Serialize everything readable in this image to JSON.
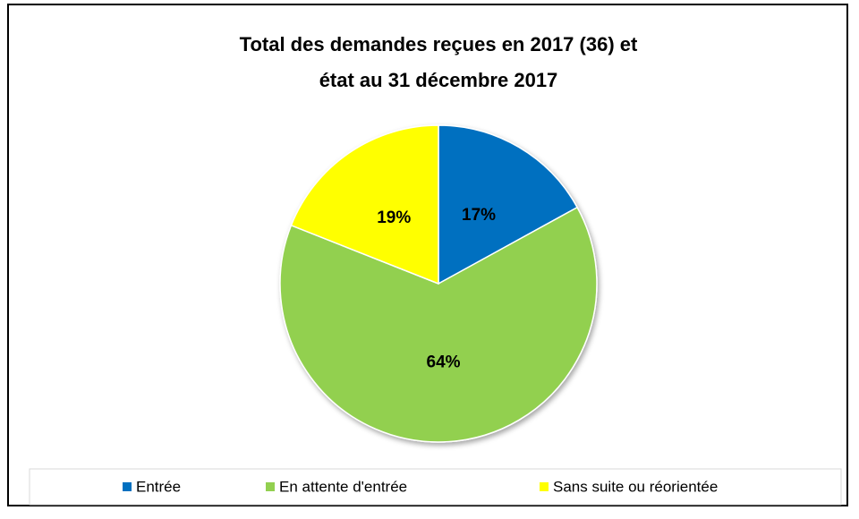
{
  "chart_data": {
    "type": "pie",
    "title": "Total des demandes reçues en 2017 (36) et état au 31 décembre 2017",
    "categories": [
      "Entrée",
      "En attente d'entrée",
      "Sans suite ou réorientée"
    ],
    "values": [
      17,
      64,
      19
    ],
    "value_labels": [
      "17%",
      "64%",
      "19%"
    ],
    "colors": [
      "#0070c0",
      "#92d050",
      "#ffff00"
    ],
    "legend": "bottom"
  }
}
